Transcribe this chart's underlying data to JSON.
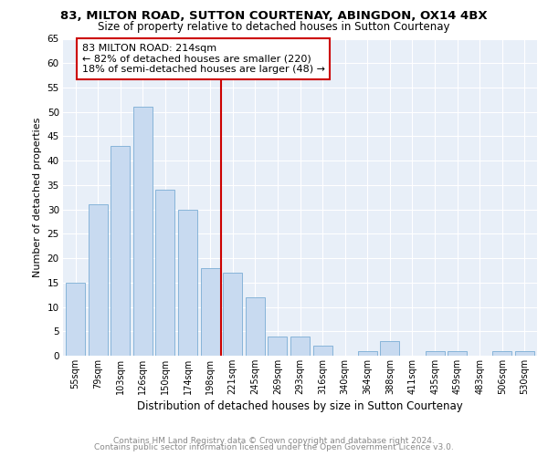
{
  "title1": "83, MILTON ROAD, SUTTON COURTENAY, ABINGDON, OX14 4BX",
  "title2": "Size of property relative to detached houses in Sutton Courtenay",
  "xlabel": "Distribution of detached houses by size in Sutton Courtenay",
  "ylabel": "Number of detached properties",
  "footnote1": "Contains HM Land Registry data © Crown copyright and database right 2024.",
  "footnote2": "Contains public sector information licensed under the Open Government Licence v3.0.",
  "categories": [
    "55sqm",
    "79sqm",
    "103sqm",
    "126sqm",
    "150sqm",
    "174sqm",
    "198sqm",
    "221sqm",
    "245sqm",
    "269sqm",
    "293sqm",
    "316sqm",
    "340sqm",
    "364sqm",
    "388sqm",
    "411sqm",
    "435sqm",
    "459sqm",
    "483sqm",
    "506sqm",
    "530sqm"
  ],
  "values": [
    15,
    31,
    43,
    51,
    34,
    30,
    18,
    17,
    12,
    4,
    4,
    2,
    0,
    1,
    3,
    0,
    1,
    1,
    0,
    1,
    1
  ],
  "bar_color": "#c8daf0",
  "bar_edge_color": "#7aadd4",
  "vline_x": 7.0,
  "vline_color": "#cc0000",
  "annotation_text": "83 MILTON ROAD: 214sqm\n← 82% of detached houses are smaller (220)\n18% of semi-detached houses are larger (48) →",
  "annotation_box_edgecolor": "#cc0000",
  "ylim": [
    0,
    65
  ],
  "yticks": [
    0,
    5,
    10,
    15,
    20,
    25,
    30,
    35,
    40,
    45,
    50,
    55,
    60,
    65
  ],
  "bg_color": "#e8eff8",
  "grid_color": "#ffffff",
  "title1_fontsize": 9.5,
  "title2_fontsize": 8.5,
  "xlabel_fontsize": 8.5,
  "ylabel_fontsize": 8,
  "annot_fontsize": 8,
  "footnote_fontsize": 6.5
}
